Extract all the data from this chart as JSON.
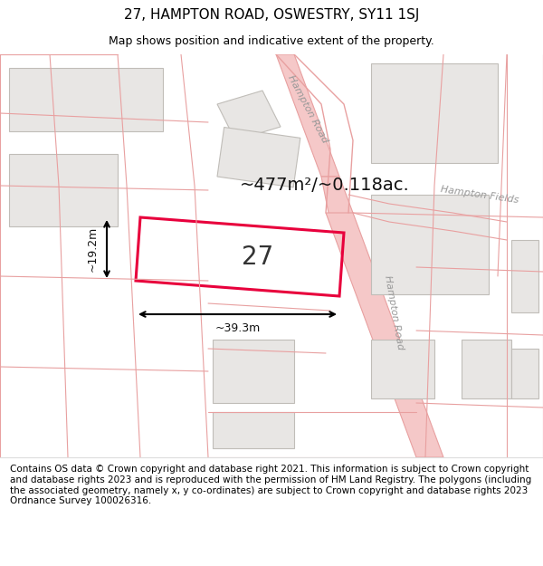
{
  "title": "27, HAMPTON ROAD, OSWESTRY, SY11 1SJ",
  "subtitle": "Map shows position and indicative extent of the property.",
  "footer": "Contains OS data © Crown copyright and database right 2021. This information is subject to Crown copyright and database rights 2023 and is reproduced with the permission of HM Land Registry. The polygons (including the associated geometry, namely x, y co-ordinates) are subject to Crown copyright and database rights 2023 Ordnance Survey 100026316.",
  "bg_color": "#ffffff",
  "map_bg": "#ffffff",
  "road_color": "#f5c8c8",
  "road_line": "#e8a0a0",
  "building_color": "#e8e6e4",
  "building_outline": "#c0bdb8",
  "highlight_color": "#e8003c",
  "plot_label": "27",
  "area_text": "~477m²/~0.118ac.",
  "dim_width": "~39.3m",
  "dim_height": "~19.2m",
  "road_label_hampton": "Hampton Road",
  "road_label_fields": "Hampton Fields",
  "label_color": "#999999",
  "title_fontsize": 11,
  "subtitle_fontsize": 9,
  "footer_fontsize": 7.5
}
